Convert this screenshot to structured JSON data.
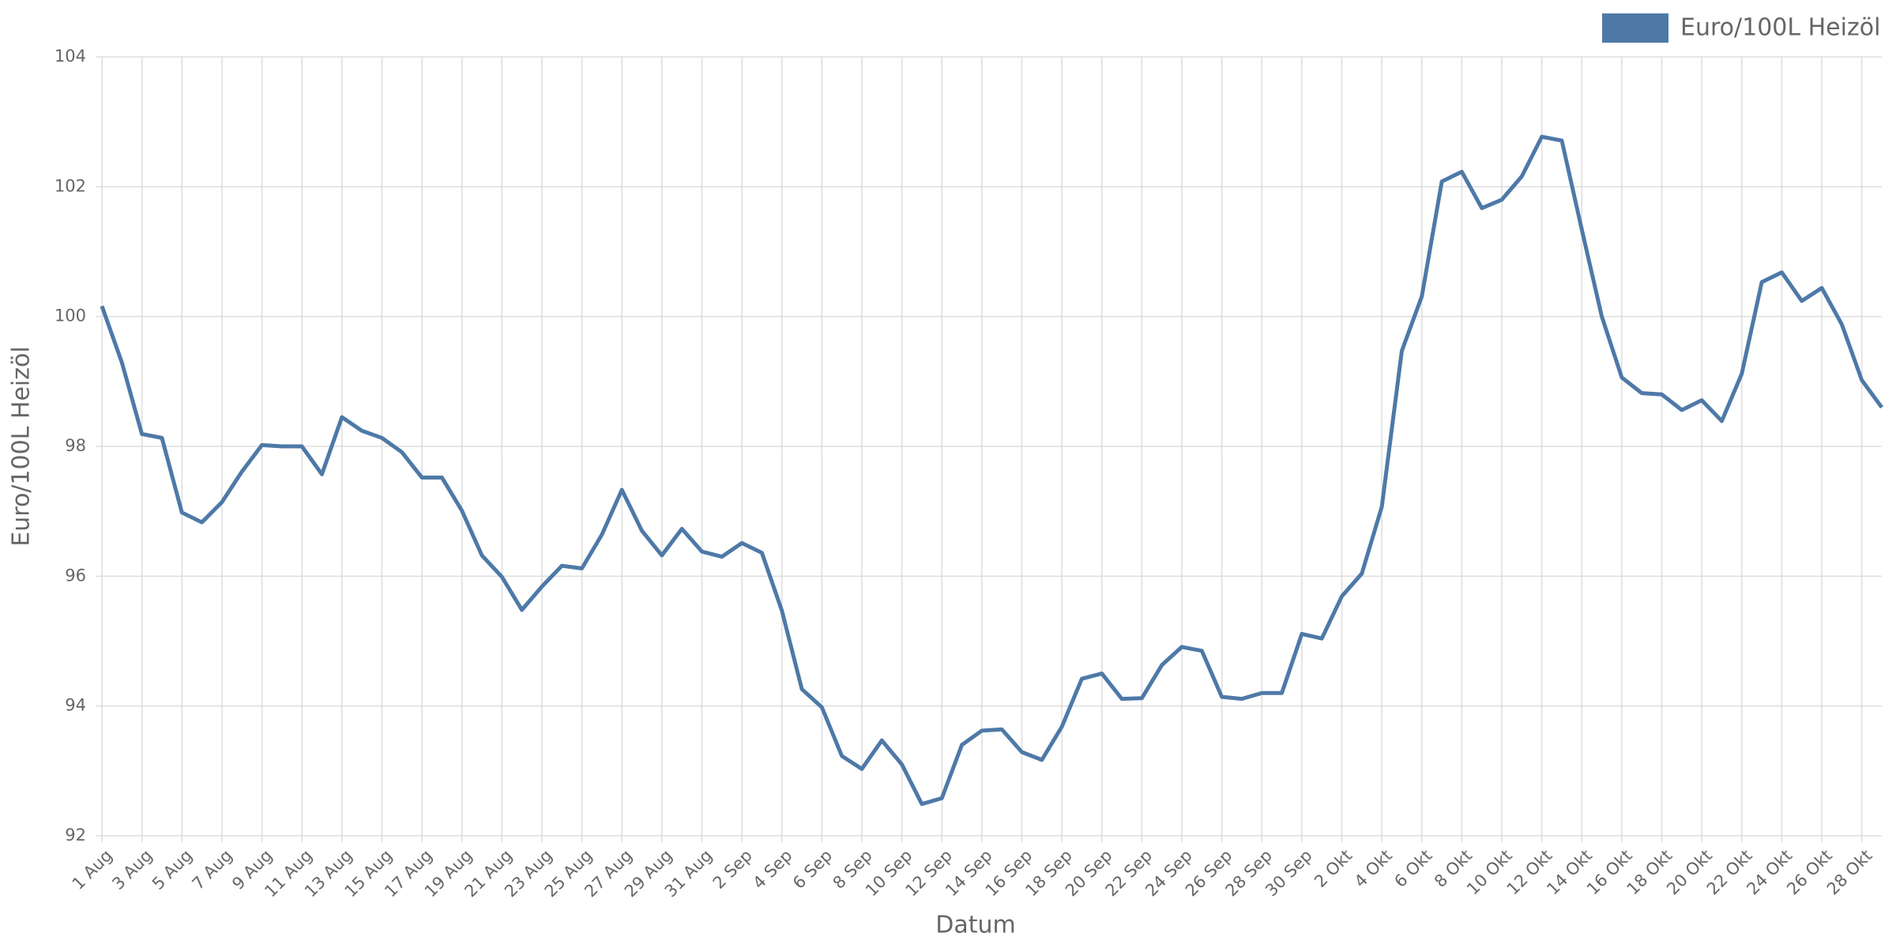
{
  "chart_data": {
    "type": "line",
    "x_label": "Datum",
    "y_label": "Euro/100L Heizöl",
    "categories": [
      "1 Aug",
      null,
      "3 Aug",
      null,
      "5 Aug",
      null,
      "7 Aug",
      null,
      "9 Aug",
      null,
      "11 Aug",
      null,
      "13 Aug",
      null,
      "15 Aug",
      null,
      "17 Aug",
      null,
      "19 Aug",
      null,
      "21 Aug",
      null,
      "23 Aug",
      null,
      "25 Aug",
      null,
      "27 Aug",
      null,
      "29 Aug",
      null,
      "31 Aug",
      null,
      "2 Sep",
      null,
      "4 Sep",
      null,
      "6 Sep",
      null,
      "8 Sep",
      null,
      "10 Sep",
      null,
      "12 Sep",
      null,
      "14 Sep",
      null,
      "16 Sep",
      null,
      "18 Sep",
      null,
      "20 Sep",
      null,
      "22 Sep",
      null,
      "24 Sep",
      null,
      "26 Sep",
      null,
      "28 Sep",
      null,
      "30 Sep",
      null,
      "2 Okt",
      null,
      "4 Okt",
      null,
      "6 Okt",
      null,
      "8 Okt",
      null,
      "10 Okt",
      null,
      "12 Okt",
      null,
      "14 Okt",
      null,
      "16 Okt",
      null,
      "18 Okt",
      null,
      "20 Okt",
      null,
      "22 Okt",
      null,
      "24 Okt",
      null,
      "26 Okt",
      null,
      "28 Okt",
      null
    ],
    "series": [
      {
        "name": "Euro/100L Heizöl",
        "color": "#4e79a7",
        "values": [
          100.16,
          99.29,
          98.19,
          98.13,
          96.98,
          96.83,
          97.14,
          97.61,
          98.02,
          98.0,
          98.0,
          97.57,
          98.45,
          98.24,
          98.13,
          97.91,
          97.52,
          97.52,
          97.01,
          96.32,
          95.99,
          95.48,
          95.84,
          96.16,
          96.12,
          96.64,
          97.33,
          96.7,
          96.32,
          96.73,
          96.38,
          96.3,
          96.51,
          96.36,
          95.47,
          94.26,
          93.98,
          93.23,
          93.03,
          93.47,
          93.1,
          92.49,
          92.58,
          93.4,
          93.62,
          93.64,
          93.29,
          93.17,
          93.68,
          94.42,
          94.5,
          94.11,
          94.12,
          94.63,
          94.91,
          94.85,
          94.14,
          94.11,
          94.2,
          94.2,
          95.11,
          95.04,
          95.69,
          96.04,
          97.07,
          99.47,
          100.31,
          102.08,
          102.23,
          101.67,
          101.8,
          102.16,
          102.77,
          102.71,
          101.34,
          100.0,
          99.06,
          98.82,
          98.8,
          98.56,
          98.71,
          98.39,
          99.12,
          100.53,
          100.68,
          100.24,
          100.44,
          99.88,
          99.02,
          98.6
        ]
      }
    ],
    "ylim": [
      92,
      104
    ],
    "yticks": [
      92,
      94,
      96,
      98,
      100,
      102,
      104
    ],
    "grid": true,
    "legend": "top-right"
  }
}
